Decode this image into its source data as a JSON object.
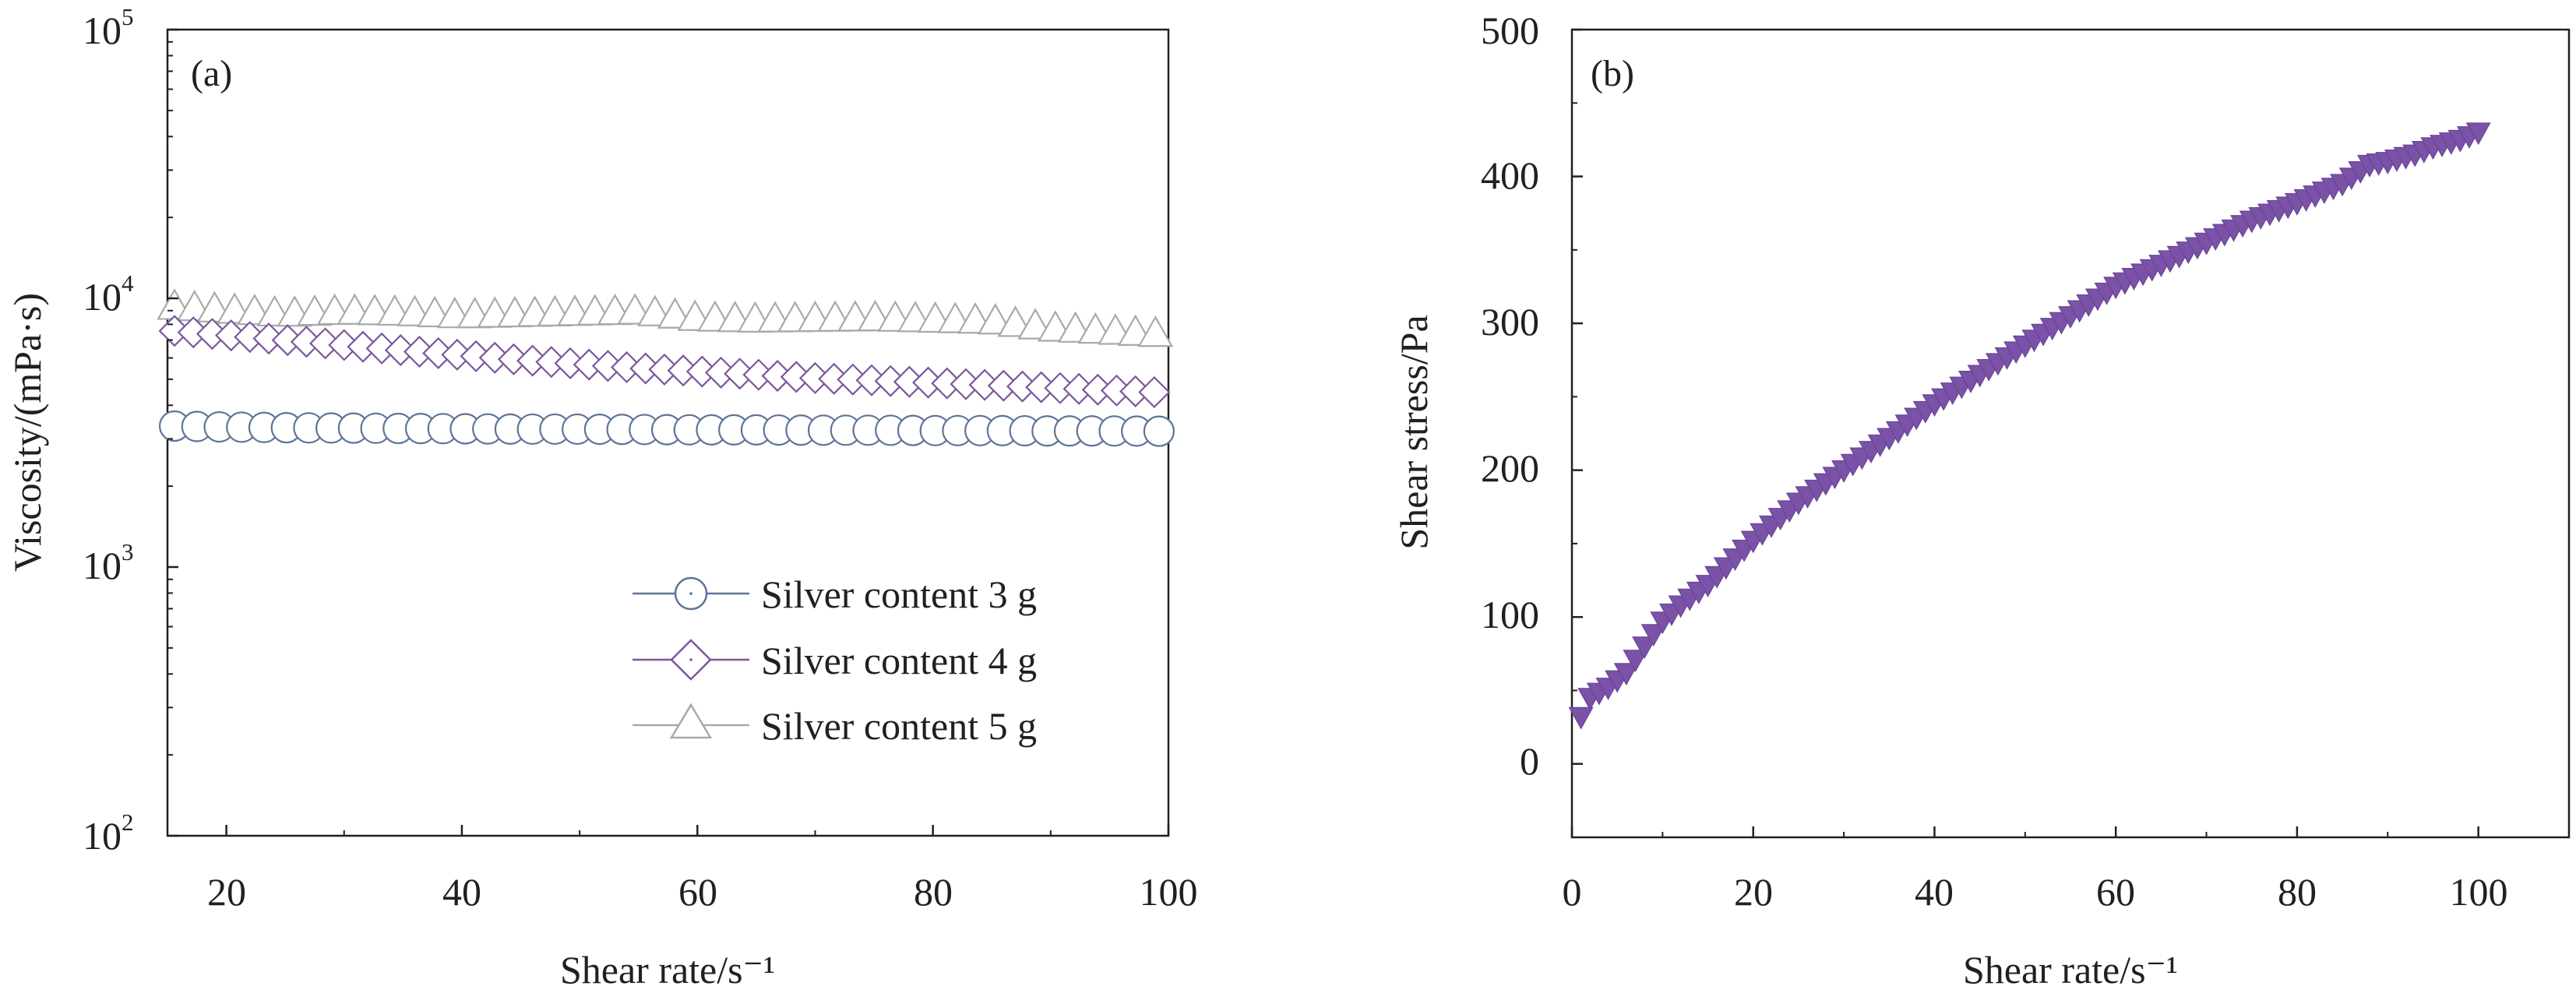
{
  "colors": {
    "series_3g": "#5d7497",
    "series_4g": "#7c569d",
    "series_5g": "#a9a9a9",
    "stress": "#7a52a8",
    "axis": "#231f20"
  },
  "chart_data": [
    {
      "panel": "(a)",
      "type": "scatter",
      "xlabel": "Shear rate/s⁻¹",
      "ylabel": "Viscosity/(mPa·s)",
      "xlim": [
        15,
        100
      ],
      "ylim": [
        100,
        100000
      ],
      "yscale": "log",
      "x_ticks": [
        "20",
        "40",
        "60",
        "80",
        "100"
      ],
      "y_ticks": [
        {
          "base": "10",
          "exp": "2"
        },
        {
          "base": "10",
          "exp": "3"
        },
        {
          "base": "10",
          "exp": "4"
        },
        {
          "base": "10",
          "exp": "5"
        }
      ],
      "legend_position": "lower-right",
      "series": [
        {
          "name": "Silver content 3 g",
          "marker": "circle",
          "x": [
            15,
            20,
            25,
            30,
            35,
            40,
            45,
            50,
            55,
            60,
            65,
            70,
            75,
            80,
            85,
            90,
            95,
            100
          ],
          "values": [
            3350,
            3320,
            3300,
            3290,
            3280,
            3270,
            3260,
            3260,
            3250,
            3240,
            3240,
            3230,
            3230,
            3220,
            3220,
            3210,
            3210,
            3200
          ]
        },
        {
          "name": "Silver content 4 g",
          "marker": "diamond",
          "x": [
            15,
            20,
            25,
            30,
            35,
            40,
            45,
            50,
            55,
            60,
            65,
            70,
            75,
            80,
            85,
            90,
            95,
            100
          ],
          "values": [
            7600,
            7300,
            7000,
            6700,
            6400,
            6150,
            5900,
            5700,
            5500,
            5350,
            5200,
            5050,
            4950,
            4850,
            4750,
            4650,
            4550,
            4450
          ]
        },
        {
          "name": "Silver content 5 g",
          "marker": "triangle",
          "x": [
            15,
            20,
            25,
            30,
            35,
            40,
            45,
            50,
            55,
            60,
            65,
            70,
            75,
            80,
            85,
            90,
            95,
            100
          ],
          "values": [
            9300,
            9000,
            8700,
            8900,
            8800,
            8600,
            8700,
            8800,
            8900,
            8400,
            8300,
            8350,
            8400,
            8300,
            8200,
            7700,
            7500,
            7300
          ]
        }
      ]
    },
    {
      "panel": "(b)",
      "type": "scatter",
      "xlabel": "Shear rate/s⁻¹",
      "ylabel": "Shear stress/Pa",
      "xlim": [
        0,
        110
      ],
      "ylim": [
        -50,
        500
      ],
      "x_ticks": [
        "0",
        "20",
        "40",
        "60",
        "80",
        "100"
      ],
      "y_ticks": [
        "0",
        "100",
        "200",
        "300",
        "400",
        "500"
      ],
      "series": [
        {
          "name": "Shear stress",
          "marker": "triangle-down",
          "x": [
            1,
            2,
            4,
            6,
            8,
            10,
            12,
            15,
            18,
            20,
            25,
            30,
            35,
            40,
            45,
            50,
            55,
            60,
            65,
            70,
            75,
            80,
            85,
            88,
            90,
            93,
            95,
            98,
            100
          ],
          "values": [
            32,
            45,
            52,
            62,
            80,
            97,
            108,
            122,
            140,
            152,
            178,
            200,
            222,
            245,
            265,
            285,
            305,
            325,
            340,
            355,
            370,
            382,
            395,
            408,
            410,
            415,
            420,
            425,
            430
          ]
        }
      ]
    }
  ]
}
